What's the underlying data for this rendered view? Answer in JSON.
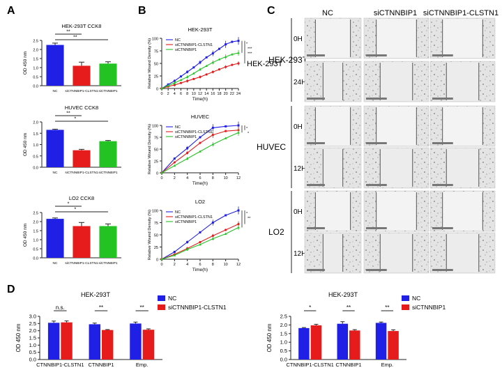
{
  "panel_letters": {
    "a": "A",
    "b": "B",
    "c": "C",
    "d": "D"
  },
  "colors": {
    "nc": "#1f1fe6",
    "sc": "#e61c1c",
    "sib": "#22c322",
    "axis": "#222222"
  },
  "chart_data": [
    {
      "id": "A1",
      "type": "bar",
      "title": "HEK-293T CCK8",
      "ylabel": "OD 450 nm",
      "categories": [
        "NC",
        "siCTNNBIP1-CLSTN1",
        "siCTNNBIP1"
      ],
      "values": [
        2.25,
        1.1,
        1.22
      ],
      "errors": [
        0.1,
        0.2,
        0.1
      ],
      "ylim": [
        0,
        2.5
      ],
      "yticks": [
        "0.0",
        "0.5",
        "1.0",
        "1.5",
        "2.0",
        "2.5"
      ],
      "significance": [
        {
          "label": "**",
          "from": 0,
          "to": 1
        },
        {
          "label": "**",
          "from": 0,
          "to": 2
        }
      ]
    },
    {
      "id": "A2",
      "type": "bar",
      "title": "HUVEC CCK8",
      "ylabel": "OD 450 nm",
      "categories": [
        "NC",
        "siCTNNBIP1-CLSTN1",
        "siCTNNBIP1"
      ],
      "values": [
        1.65,
        0.75,
        1.15
      ],
      "errors": [
        0.03,
        0.04,
        0.03
      ],
      "ylim": [
        0,
        2.0
      ],
      "yticks": [
        "0.0",
        "0.5",
        "1.0",
        "1.5",
        "2.0"
      ],
      "significance": [
        {
          "label": "**",
          "from": 0,
          "to": 1
        },
        {
          "label": "*",
          "from": 0,
          "to": 2
        }
      ]
    },
    {
      "id": "A3",
      "type": "bar",
      "title": "LO2 CCK8",
      "ylabel": "OD 450 nm",
      "categories": [
        "NC",
        "siCTNNBIP1-CLSTN1",
        "siCTNNBIP1"
      ],
      "values": [
        2.15,
        1.75,
        1.75
      ],
      "errors": [
        0.05,
        0.2,
        0.12
      ],
      "ylim": [
        0,
        2.5
      ],
      "yticks": [
        "0.0",
        "0.5",
        "1.0",
        "1.5",
        "2.0",
        "2.5"
      ],
      "significance": [
        {
          "label": "*",
          "from": 0,
          "to": 1
        },
        {
          "label": "*",
          "from": 0,
          "to": 2
        }
      ]
    },
    {
      "id": "B1",
      "type": "line",
      "title": "HEK-293T",
      "side_label": "HEK-293T",
      "xlabel": "Time(h)",
      "ylabel": "Relative Wound Density (%)",
      "x": [
        0,
        2,
        4,
        6,
        8,
        10,
        12,
        14,
        16,
        18,
        20,
        22,
        24
      ],
      "xlim": [
        0,
        24
      ],
      "xticks": [
        "0",
        "2",
        "4",
        "6",
        "8",
        "10",
        "12",
        "14",
        "16",
        "18",
        "20",
        "22",
        "24"
      ],
      "ylim": [
        0,
        100
      ],
      "yticks": [
        "0",
        "25",
        "50",
        "75",
        "100"
      ],
      "legend": [
        "NC",
        "siCTNNBIP1-CLSTN1",
        "siCTNNBIP1"
      ],
      "series": [
        {
          "name": "NC",
          "values": [
            0,
            8,
            15,
            24,
            33,
            42,
            52,
            62,
            70,
            79,
            88,
            93,
            95
          ]
        },
        {
          "name": "siCTNNBIP1-CLSTN1",
          "values": [
            0,
            4,
            7,
            11,
            15,
            19,
            23,
            28,
            33,
            38,
            43,
            47,
            50
          ]
        },
        {
          "name": "siCTNNBIP1",
          "values": [
            0,
            6,
            11,
            17,
            23,
            30,
            38,
            45,
            52,
            58,
            63,
            68,
            71
          ]
        }
      ],
      "sig_labels": [
        "*",
        "***",
        "***"
      ]
    },
    {
      "id": "B2",
      "type": "line",
      "title": "HUVEC",
      "xlabel": "Time(h)",
      "ylabel": "Relative Wound Density (%)",
      "x": [
        0,
        2,
        4,
        6,
        8,
        10,
        12
      ],
      "xlim": [
        0,
        12
      ],
      "xticks": [
        "0",
        "2",
        "4",
        "6",
        "8",
        "10",
        "12"
      ],
      "ylim": [
        0,
        100
      ],
      "yticks": [
        "0",
        "25",
        "50",
        "75",
        "100"
      ],
      "legend": [
        "NC",
        "siCTNNBIP1-CLSTN1",
        "siCTNNBIP1"
      ],
      "series": [
        {
          "name": "NC",
          "values": [
            0,
            30,
            52,
            75,
            95,
            98,
            100
          ]
        },
        {
          "name": "siCTNNBIP1-CLSTN1",
          "values": [
            0,
            22,
            42,
            63,
            80,
            88,
            90
          ]
        },
        {
          "name": "siCTNNBIP1",
          "values": [
            0,
            15,
            30,
            45,
            60,
            73,
            85
          ]
        }
      ],
      "sig_labels": [
        "*",
        "*"
      ]
    },
    {
      "id": "B3",
      "type": "line",
      "title": "LO2",
      "xlabel": "Time(h)",
      "ylabel": "Relative Wound Density (%)",
      "x": [
        0,
        2,
        4,
        6,
        8,
        10,
        12
      ],
      "xlim": [
        0,
        12
      ],
      "xticks": [
        "0",
        "2",
        "4",
        "6",
        "8",
        "10",
        "12"
      ],
      "ylim": [
        0,
        100
      ],
      "yticks": [
        "0",
        "25",
        "50",
        "75",
        "100"
      ],
      "legend": [
        "NC",
        "siCTNNBIP1-CLSTN1",
        "siCTNNBIP1"
      ],
      "series": [
        {
          "name": "NC",
          "values": [
            0,
            15,
            35,
            55,
            75,
            90,
            100
          ]
        },
        {
          "name": "siCTNNBIP1-CLSTN1",
          "values": [
            0,
            10,
            22,
            35,
            48,
            60,
            72
          ]
        },
        {
          "name": "siCTNNBIP1",
          "values": [
            0,
            8,
            20,
            30,
            42,
            52,
            65
          ]
        }
      ],
      "sig_labels": [
        "*",
        "**"
      ]
    },
    {
      "id": "D1",
      "type": "bar",
      "title": "HEK-293T",
      "ylabel": "OD 450 nm",
      "categories": [
        "CTNNBIP1-CLSTN1",
        "CTNNBIP1",
        "Emp."
      ],
      "series": [
        {
          "name": "NC",
          "values": [
            2.55,
            2.45,
            2.5
          ],
          "errors": [
            0.12,
            0.08,
            0.1
          ]
        },
        {
          "name": "siCTNNBIP1-CLSTN1",
          "values": [
            2.58,
            2.05,
            2.07
          ],
          "errors": [
            0.1,
            0.03,
            0.06
          ]
        }
      ],
      "ylim": [
        0,
        3.0
      ],
      "yticks": [
        "0.0",
        "0.5",
        "1.0",
        "1.5",
        "2.0",
        "2.5",
        "3.0"
      ],
      "significance": [
        "n.s.",
        "**",
        "**"
      ],
      "legend": [
        "NC",
        "siCTNNBIP1-CLSTN1"
      ]
    },
    {
      "id": "D2",
      "type": "bar",
      "title": "HEK-293T",
      "ylabel": "OD 450 nm",
      "categories": [
        "CTNNBIP1-CLSTN1",
        "CTNNBIP1",
        "Emp."
      ],
      "series": [
        {
          "name": "NC",
          "values": [
            1.82,
            2.07,
            2.12
          ],
          "errors": [
            0.03,
            0.12,
            0.05
          ]
        },
        {
          "name": "siCTNNBIP1",
          "values": [
            1.98,
            1.68,
            1.65
          ],
          "errors": [
            0.06,
            0.05,
            0.07
          ]
        }
      ],
      "ylim": [
        0,
        2.5
      ],
      "yticks": [
        "0.0",
        "0.5",
        "1.0",
        "1.5",
        "2.0",
        "2.5"
      ],
      "significance": [
        "*",
        "**",
        "**"
      ],
      "legend": [
        "NC",
        "siCTNNBIP1"
      ]
    }
  ],
  "micrographs": {
    "col_headers": [
      "NC",
      "siCTNNBIP1",
      "siCTNNBIP1-CLSTN1"
    ],
    "groups": [
      {
        "cell": "HEK-293T",
        "times": [
          "0H",
          "24H"
        ]
      },
      {
        "cell": "HUVEC",
        "times": [
          "0H",
          "12H"
        ]
      },
      {
        "cell": "LO2",
        "times": [
          "0H",
          "12H"
        ]
      }
    ]
  }
}
